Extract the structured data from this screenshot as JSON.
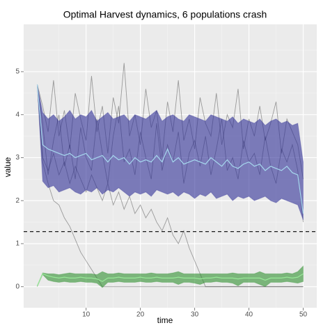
{
  "chart_data": {
    "type": "line",
    "title": "Optimal Harvest dynamics, 6 populations crash",
    "x_label": "time",
    "y_label": "value",
    "x": [
      1,
      2,
      3,
      4,
      5,
      6,
      7,
      8,
      9,
      10,
      11,
      12,
      13,
      14,
      15,
      16,
      17,
      18,
      19,
      20,
      21,
      22,
      23,
      24,
      25,
      26,
      27,
      28,
      29,
      30,
      31,
      32,
      33,
      34,
      35,
      36,
      37,
      38,
      39,
      40,
      41,
      42,
      43,
      44,
      45,
      46,
      47,
      48,
      49,
      50
    ],
    "xlim": [
      -1.5,
      52.5
    ],
    "ylim": [
      -0.49,
      6.1
    ],
    "xticks": [
      10,
      20,
      30,
      40,
      50
    ],
    "yticks": [
      0,
      1,
      2,
      3,
      4,
      5
    ],
    "grid": true,
    "hline": {
      "value": 1.28,
      "color": "#000000"
    },
    "lines": [
      {
        "color": "#000000",
        "values": [
          4.7,
          4.2,
          3.6,
          4.8,
          3.5,
          4.1,
          3.2,
          4.5,
          3.9,
          3.4,
          4.9,
          3.6,
          4.2,
          3.1,
          4.4,
          3.8,
          5.2,
          3.5,
          4.0,
          3.3,
          4.6,
          3.7,
          4.1,
          3.0,
          4.3,
          3.6,
          4.8,
          3.4,
          3.9,
          3.2,
          4.4,
          3.8,
          3.5,
          4.5,
          3.3,
          4.0,
          3.7,
          4.6,
          3.2,
          3.9,
          3.5,
          4.2,
          3.4,
          3.8,
          4.3,
          3.1,
          3.9,
          3.6,
          3.3,
          2.5
        ]
      },
      {
        "color": "#000000",
        "values": [
          4.7,
          2.9,
          2.4,
          2.0,
          1.9,
          1.6,
          1.4,
          1.1,
          0.8,
          0.6,
          0.4,
          0.2,
          0,
          0,
          0,
          0,
          0,
          0,
          0,
          0,
          0,
          0,
          0,
          0,
          0,
          0,
          0,
          0,
          0,
          0,
          0,
          0,
          0,
          0,
          0,
          0,
          0,
          0,
          0,
          0,
          0,
          0,
          0,
          0,
          0,
          0,
          0,
          0,
          0,
          0
        ]
      },
      {
        "color": "#000000",
        "values": [
          4.7,
          3.0,
          2.7,
          3.1,
          2.6,
          2.9,
          2.4,
          2.8,
          2.5,
          2.2,
          2.6,
          2.3,
          2.0,
          2.4,
          1.9,
          2.2,
          1.8,
          2.1,
          1.7,
          1.9,
          1.6,
          1.8,
          1.5,
          1.3,
          1.6,
          1.2,
          1.0,
          1.3,
          0.9,
          0.6,
          0.3,
          0,
          0,
          0,
          0,
          0,
          0,
          0,
          0,
          0,
          0,
          0,
          0,
          0,
          0,
          0,
          0,
          0,
          0,
          0
        ]
      },
      {
        "color": "#000000",
        "values": [
          4.7,
          3.8,
          2.6,
          3.4,
          4.0,
          2.8,
          3.3,
          2.5,
          3.7,
          3.0,
          2.7,
          3.9,
          3.1,
          2.4,
          3.5,
          4.2,
          2.9,
          3.2,
          2.6,
          3.6,
          3.0,
          2.5,
          3.8,
          2.7,
          3.3,
          2.9,
          3.6,
          2.4,
          3.1,
          3.4,
          2.8,
          3.5,
          2.6,
          3.2,
          3.9,
          2.7,
          3.0,
          2.5,
          3.4,
          2.9,
          3.1,
          2.6,
          3.5,
          2.8,
          2.4,
          3.2,
          2.9,
          3.3,
          2.7,
          1.5
        ]
      }
    ],
    "bands": [
      {
        "color": "#2e2e96",
        "lower": [
          4.7,
          2.45,
          2.3,
          2.35,
          2.2,
          2.25,
          2.3,
          2.2,
          2.15,
          2.25,
          2.2,
          2.3,
          2.15,
          2.25,
          2.2,
          2.3,
          2.2,
          2.1,
          2.2,
          2.15,
          2.2,
          2.1,
          2.25,
          2.2,
          2.15,
          2.2,
          2.1,
          2.2,
          2.15,
          2.05,
          2.15,
          2.1,
          2.2,
          2.05,
          2.1,
          2.15,
          2.0,
          2.1,
          2.05,
          2.1,
          2.0,
          2.05,
          2.1,
          2.0,
          1.95,
          2.05,
          2.0,
          1.95,
          1.9,
          1.55
        ],
        "upper": [
          4.7,
          4.05,
          3.9,
          4.0,
          3.85,
          3.95,
          4.1,
          3.9,
          4.0,
          3.95,
          4.1,
          3.85,
          3.95,
          4.05,
          3.9,
          3.95,
          4.0,
          3.85,
          4.0,
          3.95,
          3.9,
          4.0,
          4.1,
          3.85,
          3.95,
          4.0,
          3.9,
          3.85,
          4.0,
          3.95,
          3.9,
          3.85,
          4.0,
          3.95,
          3.9,
          3.85,
          3.95,
          3.8,
          3.9,
          3.85,
          3.8,
          3.9,
          3.75,
          3.85,
          3.9,
          3.8,
          3.85,
          3.75,
          3.8,
          2.9
        ],
        "line_color": "#a6d8ee",
        "values": [
          4.7,
          3.3,
          3.2,
          3.15,
          3.1,
          3.05,
          3.1,
          3.0,
          3.05,
          3.1,
          2.95,
          3.0,
          3.05,
          2.9,
          3.05,
          2.95,
          3.0,
          2.85,
          3.0,
          2.9,
          2.95,
          2.9,
          3.05,
          2.9,
          3.2,
          2.9,
          3.0,
          2.85,
          2.9,
          2.95,
          2.9,
          2.85,
          3.0,
          2.9,
          2.8,
          2.95,
          2.8,
          2.75,
          2.85,
          2.9,
          2.8,
          2.85,
          2.7,
          2.8,
          2.75,
          2.7,
          2.8,
          2.65,
          2.6,
          1.7
        ]
      },
      {
        "color": "#2f8f2f",
        "lower": [
          0.0,
          0.28,
          0.15,
          0.12,
          0.1,
          0.12,
          0.1,
          0.1,
          0.12,
          0.1,
          0.1,
          0.08,
          -0.02,
          0.1,
          0.1,
          0.12,
          0.1,
          0.1,
          0.1,
          0.12,
          0.1,
          0.1,
          0.12,
          0.1,
          0.1,
          0.1,
          0.05,
          0.1,
          0.1,
          0.08,
          0.05,
          0.1,
          0.1,
          0.12,
          0.1,
          0.1,
          0.08,
          0.02,
          0.1,
          0.1,
          0.1,
          0.05,
          0.0,
          0.1,
          0.1,
          0.1,
          0.12,
          0.1,
          0.08,
          0.12
        ],
        "upper": [
          0.02,
          0.32,
          0.3,
          0.3,
          0.28,
          0.3,
          0.32,
          0.3,
          0.3,
          0.3,
          0.3,
          0.28,
          0.35,
          0.3,
          0.3,
          0.32,
          0.3,
          0.3,
          0.3,
          0.3,
          0.3,
          0.32,
          0.3,
          0.3,
          0.3,
          0.32,
          0.35,
          0.3,
          0.3,
          0.3,
          0.3,
          0.3,
          0.3,
          0.3,
          0.3,
          0.3,
          0.32,
          0.3,
          0.3,
          0.3,
          0.3,
          0.35,
          0.3,
          0.3,
          0.3,
          0.3,
          0.32,
          0.3,
          0.35,
          0.48
        ],
        "line_color": "#98e898",
        "values": [
          0.02,
          0.3,
          0.25,
          0.22,
          0.2,
          0.22,
          0.2,
          0.2,
          0.22,
          0.2,
          0.2,
          0.18,
          0.12,
          0.2,
          0.2,
          0.22,
          0.2,
          0.2,
          0.2,
          0.22,
          0.2,
          0.2,
          0.22,
          0.2,
          0.2,
          0.2,
          0.22,
          0.2,
          0.2,
          0.2,
          0.18,
          0.2,
          0.2,
          0.22,
          0.2,
          0.2,
          0.2,
          0.18,
          0.2,
          0.2,
          0.2,
          0.2,
          0.15,
          0.2,
          0.2,
          0.2,
          0.22,
          0.2,
          0.22,
          0.3
        ]
      }
    ]
  }
}
